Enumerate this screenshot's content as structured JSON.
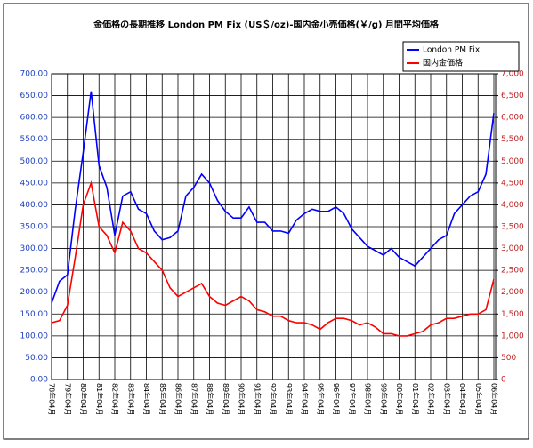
{
  "chart_data": {
    "type": "line",
    "title": "金価格の長期推移  London PM Fix (US＄/oz)-国内金小売価格(￥/g)  月間平均価格",
    "categories": [
      "78年04月",
      null,
      "79年04月",
      null,
      "80年04月",
      null,
      "81年04月",
      null,
      "82年04月",
      null,
      "83年04月",
      null,
      "84年04月",
      null,
      "85年04月",
      null,
      "86年04月",
      null,
      "87年04月",
      null,
      "88年04月",
      null,
      "89年04月",
      null,
      "90年04月",
      null,
      "91年04月",
      null,
      "92年04月",
      null,
      "93年04月",
      null,
      "94年04月",
      null,
      "95年04月",
      null,
      "96年04月",
      null,
      "97年04月",
      null,
      "98年04月",
      null,
      "99年04月",
      null,
      "00年04月",
      null,
      "01年04月",
      null,
      "02年04月",
      null,
      "03年04月",
      null,
      "04年04月",
      null,
      "05年04月",
      null,
      "06年04月"
    ],
    "series": [
      {
        "name": "London PM Fix",
        "color": "#0000ff",
        "values": [
          175,
          225,
          240,
          390,
          520,
          660,
          490,
          440,
          330,
          420,
          430,
          390,
          380,
          340,
          320,
          325,
          340,
          420,
          440,
          470,
          450,
          410,
          385,
          370,
          370,
          395,
          360,
          360,
          340,
          340,
          335,
          365,
          380,
          390,
          385,
          385,
          395,
          380,
          345,
          325,
          305,
          295,
          285,
          300,
          280,
          270,
          260,
          280,
          300,
          320,
          330,
          380,
          400,
          420,
          430,
          470,
          610
        ]
      },
      {
        "name": "国内金価格",
        "color": "#ff0000",
        "axis": "y2",
        "values": [
          1300,
          1350,
          1700,
          2800,
          4000,
          4500,
          3500,
          3300,
          2900,
          3600,
          3400,
          3000,
          2900,
          2700,
          2500,
          2100,
          1900,
          2000,
          2100,
          2200,
          1900,
          1750,
          1700,
          1800,
          1900,
          1800,
          1600,
          1550,
          1450,
          1450,
          1350,
          1300,
          1300,
          1250,
          1150,
          1300,
          1400,
          1400,
          1350,
          1250,
          1300,
          1200,
          1050,
          1050,
          1000,
          1000,
          1050,
          1100,
          1250,
          1300,
          1400,
          1400,
          1450,
          1500,
          1500,
          1600,
          2300
        ]
      }
    ],
    "ylim": [
      0,
      700
    ],
    "yticks": [
      {
        "value": 0,
        "label": "0.00"
      },
      {
        "value": 50,
        "label": "50.00"
      },
      {
        "value": 100,
        "label": "100.00"
      },
      {
        "value": 150,
        "label": "150.00"
      },
      {
        "value": 200,
        "label": "200.00"
      },
      {
        "value": 250,
        "label": "250.00"
      },
      {
        "value": 300,
        "label": "300.00"
      },
      {
        "value": 350,
        "label": "350.00"
      },
      {
        "value": 400,
        "label": "400.00"
      },
      {
        "value": 450,
        "label": "450.00"
      },
      {
        "value": 500,
        "label": "500.00"
      },
      {
        "value": 550,
        "label": "550.00"
      },
      {
        "value": 600,
        "label": "600.00"
      },
      {
        "value": 650,
        "label": "650.00"
      },
      {
        "value": 700,
        "label": "700.00"
      }
    ],
    "y2lim": [
      0,
      7000
    ],
    "y2ticks": [
      0,
      500,
      {
        "value": 1000,
        "label": "1,000"
      },
      {
        "value": 1500,
        "label": "1,500"
      },
      {
        "value": 2000,
        "label": "2,000"
      },
      {
        "value": 2500,
        "label": "2,500"
      },
      {
        "value": 3000,
        "label": "3,000"
      },
      {
        "value": 3500,
        "label": "3,500"
      },
      {
        "value": 4000,
        "label": "4,000"
      },
      {
        "value": 4500,
        "label": "4,500"
      },
      {
        "value": 5000,
        "label": "5,000"
      },
      {
        "value": 5500,
        "label": "5,500"
      },
      {
        "value": 6000,
        "label": "6,000"
      },
      {
        "value": 6500,
        "label": "6,500"
      },
      {
        "value": 7000,
        "label": "7,000"
      }
    ],
    "grid": true,
    "legend": "top-right"
  }
}
